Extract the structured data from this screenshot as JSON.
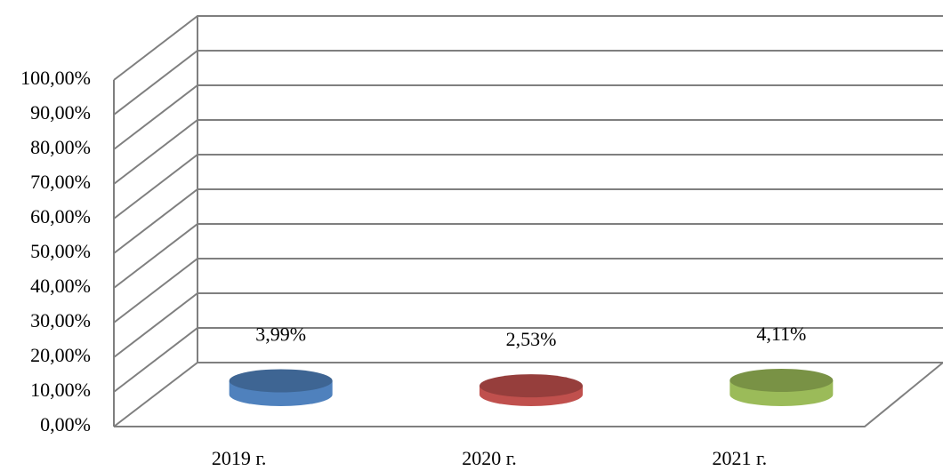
{
  "chart_data": {
    "type": "bar3d",
    "categories": [
      "2019 г.",
      "2020 г.",
      "2021 г."
    ],
    "values": [
      3.99,
      2.53,
      4.11
    ],
    "value_labels": [
      "3,99%",
      "2,53%",
      "4,11%"
    ],
    "colors": [
      "#4f81bd",
      "#c0504d",
      "#9bbb59"
    ],
    "ylim": [
      0,
      100
    ],
    "yticks": [
      {
        "value": 0,
        "label": "0,00%"
      },
      {
        "value": 10,
        "label": "10,00%"
      },
      {
        "value": 20,
        "label": "20,00%"
      },
      {
        "value": 30,
        "label": "30,00%"
      },
      {
        "value": 40,
        "label": "40,00%"
      },
      {
        "value": 50,
        "label": "50,00%"
      },
      {
        "value": 60,
        "label": "60,00%"
      },
      {
        "value": 70,
        "label": "70,00%"
      },
      {
        "value": 80,
        "label": "80,00%"
      },
      {
        "value": 90,
        "label": "90,00%"
      },
      {
        "value": 100,
        "label": "100,00%"
      }
    ],
    "grid": true
  }
}
